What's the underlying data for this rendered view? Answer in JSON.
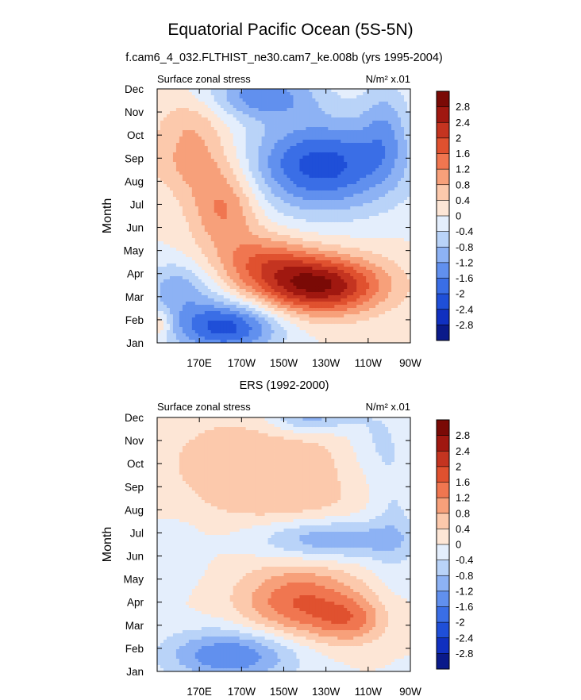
{
  "chart_data": {
    "type": "heatmap",
    "title": "Equatorial Pacific Ocean (5S-5N)",
    "levels": [
      -2.8,
      -2.4,
      -2,
      -1.6,
      -1.2,
      -0.8,
      -0.4,
      0,
      0.4,
      0.8,
      1.2,
      1.6,
      2,
      2.4,
      2.8
    ],
    "colorbar_labels": [
      "2.8",
      "2.4",
      "2",
      "1.6",
      "1.2",
      "0.8",
      "0.4",
      "0",
      "-0.4",
      "-0.8",
      "-1.2",
      "-1.6",
      "-2",
      "-2.4",
      "-2.8"
    ],
    "colors": [
      "#0a1a8a",
      "#1030c0",
      "#1f4fd8",
      "#3a6ee6",
      "#6190ee",
      "#8db2f4",
      "#b9d3f8",
      "#e4eefc",
      "#fde6d6",
      "#fcc9ac",
      "#f7a07a",
      "#f07650",
      "#e0512f",
      "#c43420",
      "#a01810",
      "#7a0a06"
    ],
    "x_ticks": [
      "170E",
      "170W",
      "150W",
      "130W",
      "110W",
      "90W"
    ],
    "x_tick_lons": [
      170,
      190,
      210,
      230,
      250,
      270
    ],
    "xlim": [
      150,
      270
    ],
    "y_ticks": [
      "Jan",
      "Feb",
      "Mar",
      "Apr",
      "May",
      "Jun",
      "Jul",
      "Aug",
      "Sep",
      "Oct",
      "Nov",
      "Dec"
    ],
    "ylim": [
      1,
      12
    ],
    "panels": [
      {
        "subtitle": "f.cam6_4_032.FLTHIST_ne30.cam7_ke.008b (yrs 1995-2004)",
        "variable": "Surface zonal stress",
        "units": "N/m² x.01",
        "ylabel": "Month",
        "features": [
          {
            "lon": 226,
            "month": 3.5,
            "amp": 2.9,
            "slon": 22,
            "smon": 0.9
          },
          {
            "lon": 200,
            "month": 4.6,
            "amp": 1.1,
            "slon": 16,
            "smon": 0.8
          },
          {
            "lon": 182,
            "month": 6.8,
            "amp": 1.3,
            "slon": 12,
            "smon": 1.2
          },
          {
            "lon": 168,
            "month": 8.8,
            "amp": 0.9,
            "slon": 15,
            "smon": 1.0
          },
          {
            "lon": 166,
            "month": 10.6,
            "amp": 0.6,
            "slon": 12,
            "smon": 0.9
          },
          {
            "lon": 151,
            "month": 1.8,
            "amp": 0.8,
            "slon": 4,
            "smon": 0.4
          },
          {
            "lon": 182,
            "month": 1.7,
            "amp": -2.2,
            "slon": 18,
            "smon": 0.8
          },
          {
            "lon": 160,
            "month": 3.4,
            "amp": -1.0,
            "slon": 12,
            "smon": 0.8
          },
          {
            "lon": 228,
            "month": 8.7,
            "amp": -2.2,
            "slon": 25,
            "smon": 1.4
          },
          {
            "lon": 200,
            "month": 11.7,
            "amp": -1.4,
            "slon": 18,
            "smon": 0.7
          },
          {
            "lon": 258,
            "month": 10.4,
            "amp": -0.8,
            "slon": 8,
            "smon": 1.5
          }
        ]
      },
      {
        "subtitle": "ERS (1992-2000)",
        "variable": "Surface zonal stress",
        "units": "N/m² x.01",
        "ylabel": "Month",
        "features": [
          {
            "lon": 218,
            "month": 4.0,
            "amp": 1.6,
            "slon": 20,
            "smon": 1.1
          },
          {
            "lon": 242,
            "month": 3.2,
            "amp": 1.0,
            "slon": 12,
            "smon": 0.7
          },
          {
            "lon": 200,
            "month": 10.0,
            "amp": 0.7,
            "slon": 38,
            "smon": 1.8
          },
          {
            "lon": 210,
            "month": 8.4,
            "amp": 0.3,
            "slon": 20,
            "smon": 0.6
          },
          {
            "lon": 185,
            "month": 1.7,
            "amp": -1.6,
            "slon": 22,
            "smon": 0.8
          },
          {
            "lon": 232,
            "month": 6.7,
            "amp": -1.2,
            "slon": 25,
            "smon": 0.6
          },
          {
            "lon": 222,
            "month": 12.0,
            "amp": -1.2,
            "slon": 14,
            "smon": 0.5
          },
          {
            "lon": 252,
            "month": 11.0,
            "amp": -0.5,
            "slon": 10,
            "smon": 1.2
          },
          {
            "lon": 158,
            "month": 6.2,
            "amp": -0.4,
            "slon": 9,
            "smon": 1.0
          },
          {
            "lon": 262,
            "month": 8.0,
            "amp": -0.5,
            "slon": 8,
            "smon": 2.5
          }
        ]
      }
    ]
  }
}
